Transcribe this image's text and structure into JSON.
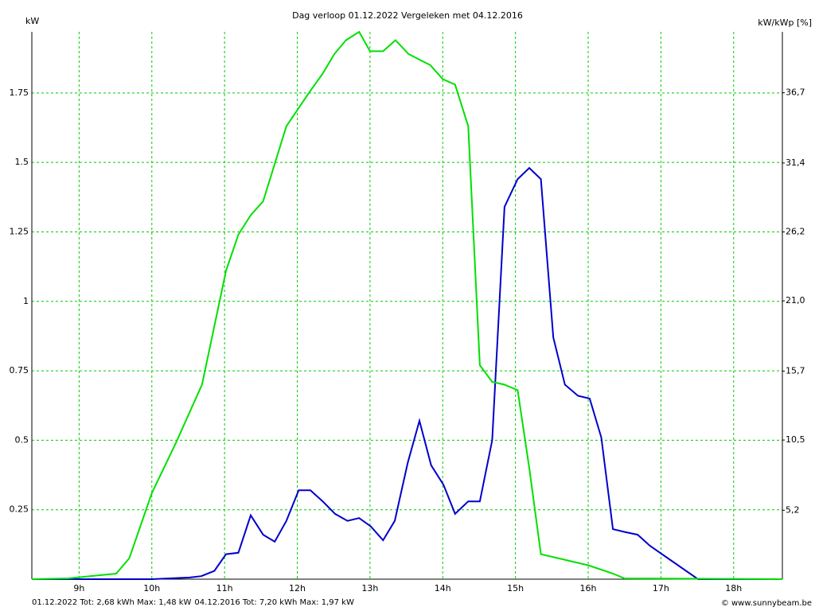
{
  "chart_data": {
    "type": "line",
    "title": "Dag  verloop 01.12.2022   Vergeleken met 04.12.2016",
    "y_label": "kW",
    "y2_label": "kW/kWp [%]",
    "credit": "© www.sunnybeam.be",
    "xlim": [
      8.35,
      18.67
    ],
    "xticks": [
      {
        "value": 9,
        "label": "9h"
      },
      {
        "value": 10,
        "label": "10h"
      },
      {
        "value": 11,
        "label": "11h"
      },
      {
        "value": 12,
        "label": "12h"
      },
      {
        "value": 13,
        "label": "13h"
      },
      {
        "value": 14,
        "label": "14h"
      },
      {
        "value": 15,
        "label": "15h"
      },
      {
        "value": 16,
        "label": "16h"
      },
      {
        "value": 17,
        "label": "17h"
      },
      {
        "value": 18,
        "label": "18h"
      }
    ],
    "ylim": [
      0,
      1.97
    ],
    "yticks": [
      0.25,
      0.5,
      0.75,
      1,
      1.25,
      1.5,
      1.75
    ],
    "y2lim": [
      0,
      41.3
    ],
    "y2ticks": [
      {
        "value": 5.2,
        "label": "5,2"
      },
      {
        "value": 10.5,
        "label": "10,5"
      },
      {
        "value": 15.7,
        "label": "15,7"
      },
      {
        "value": 21.0,
        "label": "21,0"
      },
      {
        "value": 26.2,
        "label": "26,2"
      },
      {
        "value": 31.4,
        "label": "31,4"
      },
      {
        "value": 36.7,
        "label": "36,7"
      }
    ],
    "grid": true,
    "grid_color": "#00cc00",
    "series": [
      {
        "name": "01.12.2022 Tot: 2,68 kWh Max: 1,48 kW",
        "color": "#0000cc",
        "x": [
          8.35,
          10.0,
          10.52,
          10.68,
          10.86,
          11.02,
          11.19,
          11.36,
          11.53,
          11.69,
          11.85,
          12.02,
          12.18,
          12.35,
          12.52,
          12.69,
          12.85,
          13.01,
          13.18,
          13.34,
          13.52,
          13.68,
          13.84,
          14.01,
          14.17,
          14.35,
          14.51,
          14.68,
          14.85,
          15.03,
          15.19,
          15.35,
          15.52,
          15.68,
          15.86,
          16.02,
          16.18,
          16.34,
          16.5,
          16.68,
          16.85,
          17.18,
          17.51,
          18.67
        ],
        "values": [
          0,
          0,
          0.006,
          0.011,
          0.03,
          0.09,
          0.095,
          0.23,
          0.16,
          0.135,
          0.21,
          0.32,
          0.32,
          0.28,
          0.235,
          0.21,
          0.22,
          0.19,
          0.14,
          0.21,
          0.42,
          0.57,
          0.41,
          0.34,
          0.235,
          0.28,
          0.28,
          0.5,
          1.34,
          1.44,
          1.48,
          1.44,
          0.87,
          0.7,
          0.66,
          0.65,
          0.51,
          0.18,
          0.17,
          0.16,
          0.12,
          0.06,
          0,
          0
        ]
      },
      {
        "name": "04.12.2016 Tot: 7,20 kWh Max: 1,97 kW",
        "color": "#00e000",
        "x": [
          8.35,
          8.85,
          9.51,
          9.69,
          10.0,
          10.33,
          10.69,
          11.02,
          11.19,
          11.36,
          11.53,
          11.85,
          12.16,
          12.35,
          12.51,
          12.67,
          12.85,
          13.0,
          13.18,
          13.35,
          13.53,
          13.83,
          14.0,
          14.17,
          14.35,
          14.51,
          14.68,
          14.85,
          15.03,
          15.19,
          15.35,
          16.0,
          16.34,
          16.5,
          18.67
        ],
        "values": [
          0,
          0.003,
          0.02,
          0.075,
          0.31,
          0.49,
          0.7,
          1.11,
          1.24,
          1.31,
          1.36,
          1.63,
          1.75,
          1.82,
          1.89,
          1.94,
          1.97,
          1.9,
          1.9,
          1.94,
          1.89,
          1.85,
          1.8,
          1.78,
          1.63,
          0.77,
          0.71,
          0.7,
          0.68,
          0.4,
          0.09,
          0.05,
          0.02,
          0.003,
          0
        ]
      }
    ]
  }
}
